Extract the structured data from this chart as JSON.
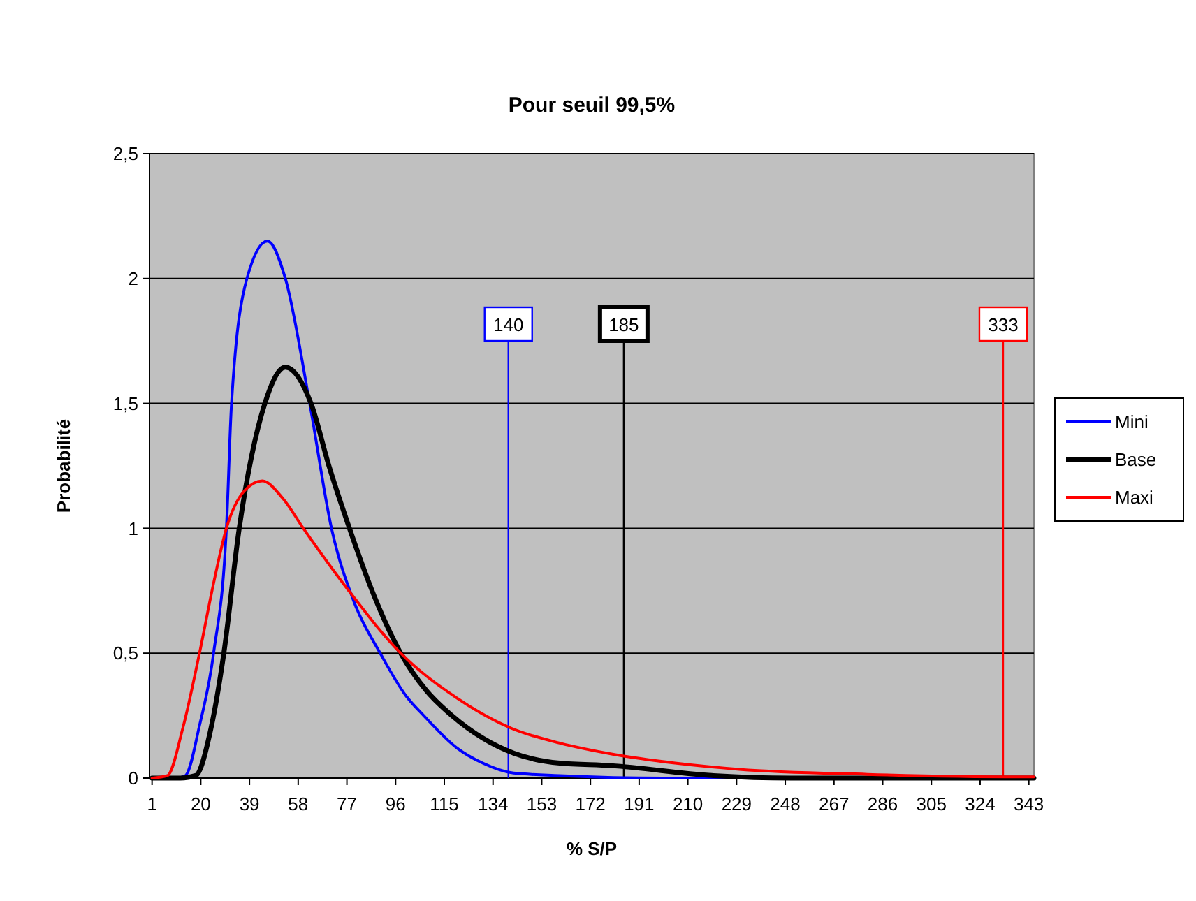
{
  "chart_data": {
    "type": "line",
    "title": "Pour seuil 99,5%",
    "xlabel": "% S/P",
    "ylabel": "Probabilité",
    "xlim": [
      0,
      345
    ],
    "xticks": [
      1,
      20,
      39,
      58,
      77,
      96,
      115,
      134,
      153,
      172,
      191,
      210,
      229,
      248,
      267,
      286,
      305,
      324,
      343
    ],
    "ylim": [
      0,
      2.5
    ],
    "yticks": [
      0,
      {
        "value": 0.5,
        "label": "0,5"
      },
      1,
      {
        "value": 1.5,
        "label": "1,5"
      },
      2,
      {
        "value": 2.5,
        "label": "2,5"
      }
    ],
    "grid": "y",
    "legend": "right",
    "line_style": "solid",
    "series": [
      {
        "name": "Mini",
        "color": "#0000ff",
        "x": [
          1,
          10,
          14,
          19.5,
          25,
          30,
          32,
          38,
          46,
          53,
          62.5,
          71,
          80,
          90,
          100,
          107,
          120,
          130,
          142,
          160,
          200,
          345
        ],
        "values": [
          0,
          0,
          0.01,
          0.21,
          0.5,
          1.0,
          1.5,
          2.0,
          2.15,
          2.0,
          1.5,
          1.0,
          0.7,
          0.5,
          0.33,
          0.25,
          0.12,
          0.06,
          0.02,
          0.01,
          0,
          0
        ]
      },
      {
        "name": "Base",
        "color": "#000000",
        "x": [
          1,
          12,
          18,
          24,
          29,
          35,
          45,
          53,
          63,
          70,
          78,
          88,
          98,
          108,
          118,
          130,
          142,
          160,
          180,
          220,
          250,
          345
        ],
        "values": [
          0,
          0,
          0.01,
          0.2,
          0.5,
          1.0,
          1.5,
          1.645,
          1.5,
          1.25,
          1.0,
          0.72,
          0.5,
          0.35,
          0.25,
          0.16,
          0.1,
          0.06,
          0.05,
          0.01,
          0,
          0
        ]
      },
      {
        "name": "Maxi",
        "color": "#ff0000",
        "x": [
          1,
          7,
          13,
          19.5,
          25,
          30,
          37,
          44,
          52,
          60,
          77,
          98,
          120,
          141,
          160,
          181,
          205,
          230,
          280,
          340,
          345
        ],
        "values": [
          0,
          0.01,
          0.2,
          0.5,
          0.78,
          1.0,
          1.15,
          1.19,
          1.12,
          1.0,
          0.76,
          0.5,
          0.32,
          0.2,
          0.14,
          0.095,
          0.06,
          0.035,
          0.015,
          0.005,
          0.005
        ]
      }
    ],
    "ref_lines": [
      {
        "axis": "x",
        "value": 140,
        "label": "140",
        "color": "#0000ff"
      },
      {
        "axis": "x",
        "value": 185,
        "label": "185",
        "color": "#000000"
      },
      {
        "axis": "x",
        "value": 333,
        "label": "333",
        "color": "#ff0000"
      }
    ]
  }
}
